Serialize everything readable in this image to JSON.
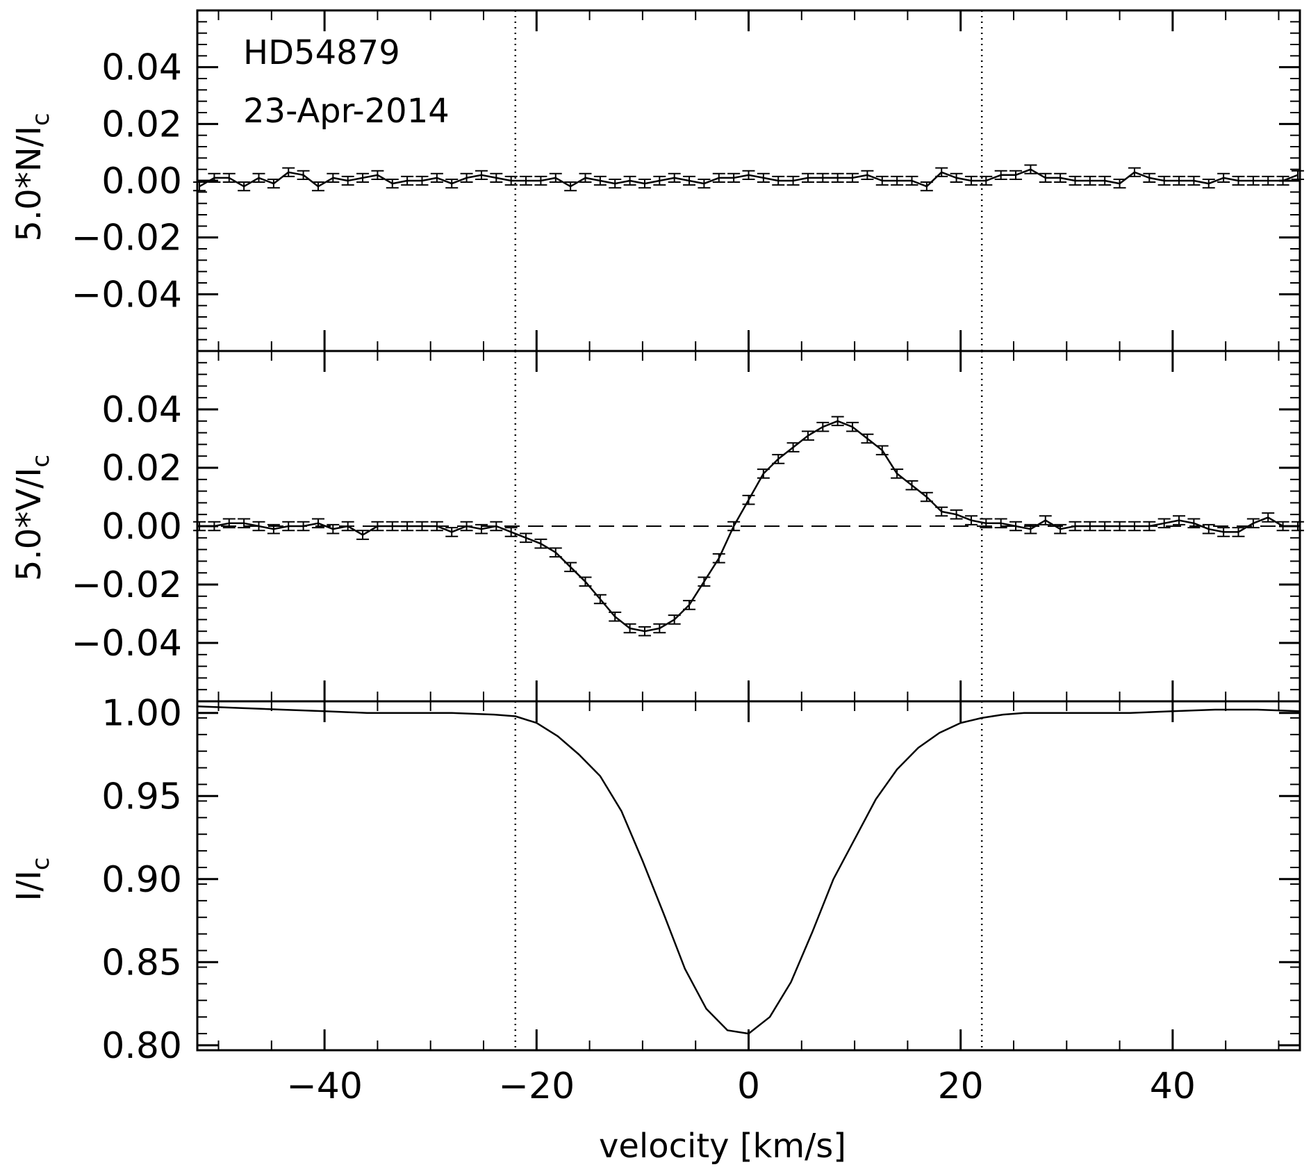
{
  "annotations": {
    "star": "HD54879",
    "date": "23-Apr-2014"
  },
  "chart_data": [
    {
      "panel": "N",
      "type": "line",
      "ylabel": "5.0*N/I_c",
      "ylabel_main": "5.0*N/I",
      "ylabel_sub": "c",
      "xlim": [
        -52,
        52
      ],
      "ylim": [
        -0.06,
        0.06
      ],
      "yticks": [
        -0.04,
        -0.02,
        0.0,
        0.02,
        0.04
      ],
      "ytick_labels": [
        "−0.04",
        "−0.02",
        "0.00",
        "0.02",
        "0.04"
      ],
      "error_bars": true,
      "error": 0.0015,
      "reference_lines": [
        -22,
        22
      ],
      "x": [
        -51.8,
        -50.4,
        -49.0,
        -47.6,
        -46.2,
        -44.8,
        -43.4,
        -42.0,
        -40.6,
        -39.2,
        -37.8,
        -36.4,
        -35.0,
        -33.6,
        -32.2,
        -30.8,
        -29.4,
        -28.0,
        -26.6,
        -25.2,
        -23.8,
        -22.4,
        -21.0,
        -19.6,
        -18.2,
        -16.8,
        -15.4,
        -14.0,
        -12.6,
        -11.2,
        -9.8,
        -8.4,
        -7.0,
        -5.6,
        -4.2,
        -2.8,
        -1.4,
        0.0,
        1.4,
        2.8,
        4.2,
        5.6,
        7.0,
        8.4,
        9.8,
        11.2,
        12.6,
        14.0,
        15.4,
        16.8,
        18.2,
        19.6,
        21.0,
        22.4,
        23.8,
        25.2,
        26.6,
        28.0,
        29.4,
        30.8,
        32.2,
        33.6,
        35.0,
        36.4,
        37.8,
        39.2,
        40.6,
        42.0,
        43.4,
        44.8,
        46.2,
        47.6,
        49.0,
        50.4,
        51.8
      ],
      "y": [
        -0.002,
        0.001,
        0.001,
        -0.002,
        0.001,
        -0.001,
        0.003,
        0.002,
        -0.002,
        0.001,
        0.0,
        0.001,
        0.002,
        -0.001,
        0.0,
        0.0,
        0.001,
        -0.001,
        0.001,
        0.002,
        0.001,
        0.0,
        0.0,
        0.0,
        0.001,
        -0.002,
        0.001,
        0.0,
        -0.001,
        0.0,
        -0.001,
        0.0,
        0.001,
        0.0,
        -0.001,
        0.001,
        0.001,
        0.002,
        0.001,
        0.0,
        0.0,
        0.001,
        0.001,
        0.001,
        0.001,
        0.002,
        0.0,
        0.0,
        0.0,
        -0.002,
        0.003,
        0.001,
        0.0,
        0.0,
        0.002,
        0.002,
        0.004,
        0.001,
        0.001,
        0.0,
        0.0,
        0.0,
        -0.001,
        0.003,
        0.001,
        0.0,
        0.0,
        0.0,
        -0.001,
        0.001,
        0.0,
        0.0,
        0.0,
        0.0,
        0.002
      ]
    },
    {
      "panel": "V",
      "type": "line",
      "ylabel": "5.0*V/I_c",
      "ylabel_main": "5.0*V/I",
      "ylabel_sub": "c",
      "xlim": [
        -52,
        52
      ],
      "ylim": [
        -0.06,
        0.06
      ],
      "yticks": [
        -0.04,
        -0.02,
        0.0,
        0.02,
        0.04
      ],
      "ytick_labels": [
        "−0.04",
        "−0.02",
        "0.00",
        "0.02",
        "0.04"
      ],
      "error_bars": true,
      "error": 0.0015,
      "zero_line": true,
      "reference_lines": [
        -22,
        22
      ],
      "x": [
        -51.8,
        -50.4,
        -49.0,
        -47.6,
        -46.2,
        -44.8,
        -43.4,
        -42.0,
        -40.6,
        -39.2,
        -37.8,
        -36.4,
        -35.0,
        -33.6,
        -32.2,
        -30.8,
        -29.4,
        -28.0,
        -26.6,
        -25.2,
        -23.8,
        -22.4,
        -21.0,
        -19.6,
        -18.2,
        -16.8,
        -15.4,
        -14.0,
        -12.6,
        -11.2,
        -9.8,
        -8.4,
        -7.0,
        -5.6,
        -4.2,
        -2.8,
        -1.4,
        0.0,
        1.4,
        2.8,
        4.2,
        5.6,
        7.0,
        8.4,
        9.8,
        11.2,
        12.6,
        14.0,
        15.4,
        16.8,
        18.2,
        19.6,
        21.0,
        22.4,
        23.8,
        25.2,
        26.6,
        28.0,
        29.4,
        30.8,
        32.2,
        33.6,
        35.0,
        36.4,
        37.8,
        39.2,
        40.6,
        42.0,
        43.4,
        44.8,
        46.2,
        47.6,
        49.0,
        50.4,
        51.8
      ],
      "y": [
        0.0,
        0.0,
        0.001,
        0.001,
        0.0,
        -0.001,
        0.0,
        0.0,
        0.001,
        -0.001,
        0.0,
        -0.003,
        0.0,
        0.0,
        0.0,
        0.0,
        0.0,
        -0.002,
        0.0,
        -0.001,
        0.0,
        -0.002,
        -0.004,
        -0.006,
        -0.009,
        -0.014,
        -0.019,
        -0.025,
        -0.031,
        -0.035,
        -0.036,
        -0.035,
        -0.032,
        -0.027,
        -0.019,
        -0.011,
        0.0,
        0.009,
        0.018,
        0.023,
        0.027,
        0.031,
        0.034,
        0.036,
        0.034,
        0.03,
        0.026,
        0.018,
        0.014,
        0.01,
        0.005,
        0.004,
        0.002,
        0.001,
        0.001,
        0.0,
        -0.001,
        0.002,
        -0.001,
        0.0,
        0.0,
        0.0,
        0.0,
        0.0,
        0.0,
        0.001,
        0.002,
        0.001,
        -0.001,
        -0.002,
        -0.002,
        0.001,
        0.003,
        0.0,
        0.0
      ]
    },
    {
      "panel": "I",
      "type": "line",
      "ylabel": "I/I_c",
      "ylabel_main": "I/I",
      "ylabel_sub": "c",
      "xlabel": "velocity [km/s]",
      "xlim": [
        -52,
        52
      ],
      "ylim": [
        0.797,
        1.007
      ],
      "yticks": [
        0.8,
        0.85,
        0.9,
        0.95,
        1.0
      ],
      "ytick_labels": [
        "0.80",
        "0.85",
        "0.90",
        "0.95",
        "1.00"
      ],
      "xticks": [
        -40,
        -20,
        0,
        20,
        40
      ],
      "xtick_labels": [
        "−40",
        "−20",
        "0",
        "20",
        "40"
      ],
      "error_bars": false,
      "reference_lines": [
        -22,
        22
      ],
      "x": [
        -52,
        -48,
        -44,
        -40,
        -36,
        -32,
        -28,
        -24,
        -22,
        -20,
        -18,
        -16,
        -14,
        -12,
        -10,
        -8,
        -6,
        -4,
        -2,
        0,
        2,
        4,
        6,
        8,
        10,
        12,
        14,
        16,
        18,
        20,
        22,
        24,
        26,
        28,
        32,
        36,
        40,
        44,
        48,
        52
      ],
      "y": [
        1.004,
        1.003,
        1.002,
        1.001,
        1.0,
        1.0,
        1.0,
        0.999,
        0.998,
        0.994,
        0.986,
        0.975,
        0.962,
        0.941,
        0.911,
        0.879,
        0.846,
        0.822,
        0.809,
        0.807,
        0.817,
        0.838,
        0.868,
        0.9,
        0.924,
        0.948,
        0.966,
        0.979,
        0.988,
        0.994,
        0.997,
        0.999,
        1.0,
        1.0,
        1.0,
        1.0,
        1.001,
        1.002,
        1.002,
        1.001
      ]
    }
  ]
}
